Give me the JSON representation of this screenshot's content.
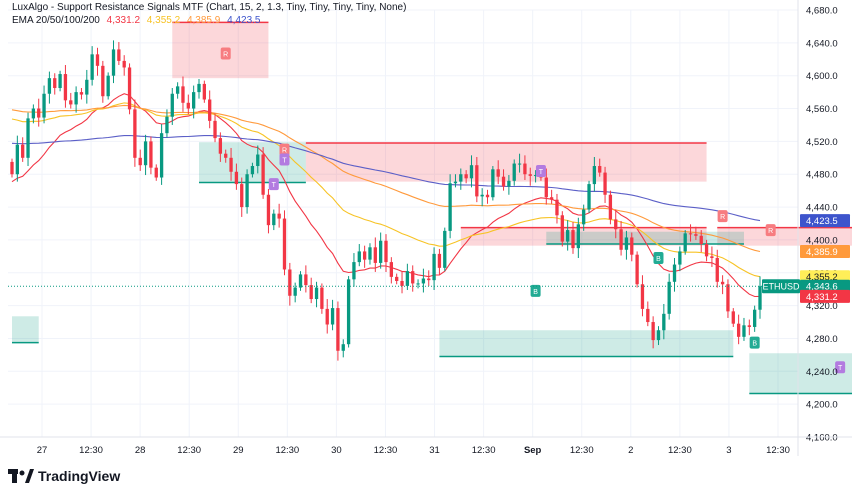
{
  "legend": {
    "indicator": "LuxAlgo - Support Resistance Signals MTF (Chart, 15, 2, 1.3, Tiny, Tiny, Tiny, Tiny, None)",
    "ema_label": "EMA 20/50/100/200",
    "ema_values": [
      "4,331.2",
      "4,355.2",
      "4,385.9",
      "4,423.5"
    ]
  },
  "brand": {
    "name": "TradingView"
  },
  "chart_data": {
    "type": "candlestick",
    "symbol": "ETHUSD",
    "price_axis": {
      "min": 4160,
      "max": 4680,
      "ticks": [
        "4,680.0",
        "4,640.0",
        "4,600.0",
        "4,560.0",
        "4,520.0",
        "4,480.0",
        "4,440.0",
        "4,400.0",
        "4,360.0",
        "4,320.0",
        "4,280.0",
        "4,240.0",
        "4,200.0",
        "4,160.0"
      ]
    },
    "time_axis": {
      "labels": [
        "27",
        "12:30",
        "28",
        "12:30",
        "29",
        "12:30",
        "30",
        "12:30",
        "31",
        "12:30",
        "Sep",
        "12:30",
        "2",
        "12:30",
        "3",
        "12:30"
      ]
    },
    "candles": {
      "open": [
        4495,
        4480,
        4516,
        4500,
        4548,
        4560,
        4549,
        4578,
        4597,
        4585,
        4602,
        4570,
        4565,
        4580,
        4577,
        4595,
        4626,
        4612,
        4575,
        4600,
        4632,
        4618,
        4610,
        4559,
        4500,
        4491,
        4520,
        4488,
        4476,
        4530,
        4550,
        4578,
        4587,
        4567,
        4560,
        4580,
        4590,
        4571,
        4545,
        4524,
        4505,
        4500,
        4483,
        4468,
        4440,
        4480,
        4490,
        4504,
        4455,
        4418,
        4432,
        4426,
        4364,
        4332,
        4342,
        4358,
        4345,
        4328,
        4342,
        4316,
        4297,
        4317,
        4265,
        4273,
        4352,
        4373,
        4386,
        4376,
        4391,
        4372,
        4399,
        4373,
        4355,
        4350,
        4344,
        4362,
        4347,
        4347,
        4353,
        4351,
        4383,
        4366,
        4411,
        4469,
        4471,
        4480,
        4475,
        4491,
        4453,
        4455,
        4452,
        4486,
        4477,
        4465,
        4472,
        4493,
        4493,
        4480,
        4478,
        4479,
        4476,
        4452,
        4449,
        4430,
        4398,
        4412,
        4390,
        4419,
        4437,
        4468,
        4490,
        4482,
        4455,
        4425,
        4413,
        4388,
        4403,
        4382,
        4346,
        4316,
        4300,
        4278,
        4290,
        4310,
        4349,
        4370,
        4386,
        4408,
        4407,
        4405,
        4395,
        4380,
        4378,
        4349,
        4346,
        4313,
        4298,
        4282,
        4296,
        4294,
        4315
      ],
      "close": [
        4480,
        4516,
        4500,
        4548,
        4560,
        4549,
        4578,
        4597,
        4585,
        4602,
        4570,
        4565,
        4580,
        4577,
        4595,
        4626,
        4612,
        4575,
        4600,
        4632,
        4618,
        4610,
        4559,
        4500,
        4491,
        4520,
        4488,
        4476,
        4530,
        4550,
        4578,
        4587,
        4567,
        4560,
        4580,
        4590,
        4571,
        4545,
        4524,
        4505,
        4500,
        4483,
        4468,
        4440,
        4480,
        4490,
        4504,
        4455,
        4418,
        4432,
        4426,
        4364,
        4332,
        4342,
        4358,
        4345,
        4328,
        4342,
        4316,
        4297,
        4317,
        4265,
        4273,
        4352,
        4373,
        4386,
        4376,
        4391,
        4372,
        4399,
        4373,
        4355,
        4350,
        4344,
        4362,
        4347,
        4347,
        4353,
        4351,
        4383,
        4366,
        4411,
        4469,
        4471,
        4480,
        4475,
        4491,
        4453,
        4455,
        4452,
        4486,
        4477,
        4465,
        4472,
        4493,
        4493,
        4480,
        4478,
        4479,
        4476,
        4452,
        4449,
        4430,
        4398,
        4412,
        4390,
        4419,
        4437,
        4468,
        4490,
        4482,
        4455,
        4425,
        4413,
        4388,
        4403,
        4382,
        4346,
        4316,
        4300,
        4278,
        4290,
        4310,
        4349,
        4370,
        4386,
        4408,
        4407,
        4405,
        4395,
        4380,
        4378,
        4349,
        4346,
        4313,
        4298,
        4282,
        4296,
        4294,
        4315,
        4343.6
      ]
    },
    "ema_series": [
      {
        "name": "EMA 20",
        "color": "#f23645",
        "start": 4470,
        "end": 4331.2
      },
      {
        "name": "EMA 50",
        "color": "#f7c325",
        "start": 4550,
        "end": 4355.2
      },
      {
        "name": "EMA 100",
        "color": "#ff9a3c",
        "start": 4560,
        "end": 4385.9
      },
      {
        "name": "EMA 200",
        "color": "#5b5fc7",
        "start": 4518,
        "end": 4423.5
      }
    ],
    "resistance_zones": [
      {
        "x0": 30,
        "x1": 48,
        "top": 4665,
        "bottom": 4597
      },
      {
        "x0": 55,
        "x1": 130,
        "top": 4518,
        "bottom": 4471
      },
      {
        "x0": 84,
        "x1": 130,
        "top": 4415,
        "bottom": 4393
      },
      {
        "x0": 132,
        "x1": 160,
        "top": 4415,
        "bottom": 4393
      }
    ],
    "support_zones": [
      {
        "x0": 0,
        "x1": 5,
        "top": 4307,
        "bottom": 4275
      },
      {
        "x0": 35,
        "x1": 55,
        "top": 4519,
        "bottom": 4470
      },
      {
        "x0": 80,
        "x1": 135,
        "top": 4290,
        "bottom": 4258
      },
      {
        "x0": 100,
        "x1": 137,
        "top": 4410,
        "bottom": 4395
      },
      {
        "x0": 138,
        "x1": 160,
        "top": 4262,
        "bottom": 4213
      }
    ],
    "signals": [
      {
        "i": 40,
        "price": 4627,
        "kind": "R"
      },
      {
        "i": 51,
        "price": 4510,
        "kind": "R"
      },
      {
        "i": 51,
        "price": 4498,
        "kind": "T"
      },
      {
        "i": 49,
        "price": 4468,
        "kind": "T"
      },
      {
        "i": 99,
        "price": 4484,
        "kind": "T"
      },
      {
        "i": 98,
        "price": 4338,
        "kind": "B"
      },
      {
        "i": 121,
        "price": 4378,
        "kind": "B"
      },
      {
        "i": 133,
        "price": 4429,
        "kind": "R"
      },
      {
        "i": 142,
        "price": 4412,
        "kind": "R"
      },
      {
        "i": 139,
        "price": 4275,
        "kind": "B"
      },
      {
        "i": 155,
        "price": 4245,
        "kind": "T"
      }
    ],
    "price_labels": [
      {
        "text": "4,423.5",
        "bg": "#3d54cc",
        "fg": "#ffffff",
        "price": 4423.5
      },
      {
        "text": "4,385.9",
        "bg": "#ff9a3c",
        "fg": "#ffffff",
        "price": 4385.9
      },
      {
        "text": "4,355.2",
        "bg": "#ffee58",
        "fg": "#131722",
        "price": 4355.2
      },
      {
        "text": "4,343.6",
        "bg": "#089981",
        "fg": "#ffffff",
        "price": 4343.6,
        "symbol": "ETHUSD"
      },
      {
        "text": "4,331.2",
        "bg": "#f23645",
        "fg": "#ffffff",
        "price": 4331.2
      }
    ],
    "colors": {
      "up": "#089981",
      "down": "#f23645",
      "grid": "#f0f3fa",
      "text": "#131722"
    }
  }
}
